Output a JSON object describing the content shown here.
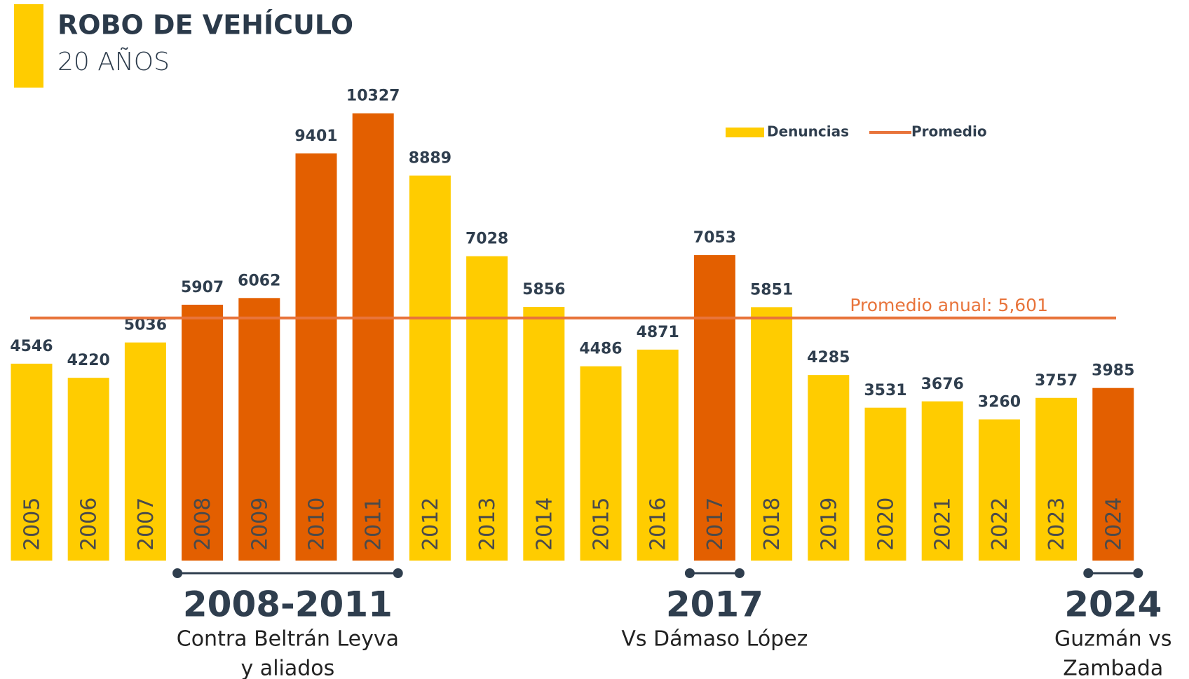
{
  "chart_data": {
    "type": "bar",
    "title": "ROBO DE VEHÍCULO",
    "subtitle": "20 AÑOS",
    "categories": [
      "2005",
      "2006",
      "2007",
      "2008",
      "2009",
      "2010",
      "2011",
      "2012",
      "2013",
      "2014",
      "2015",
      "2016",
      "2017",
      "2018",
      "2019",
      "2020",
      "2021",
      "2022",
      "2023",
      "2024"
    ],
    "series": [
      {
        "name": "Denuncias",
        "color": "#FFCC00",
        "values": [
          4546,
          4220,
          5036,
          5907,
          6062,
          9401,
          10327,
          8889,
          7028,
          5856,
          4486,
          4871,
          7053,
          5851,
          4285,
          3531,
          3676,
          3260,
          3757,
          3985
        ],
        "colors": [
          "#FFCC00",
          "#FFCC00",
          "#FFCC00",
          "#E35F00",
          "#E35F00",
          "#E35F00",
          "#E35F00",
          "#FFCC00",
          "#FFCC00",
          "#FFCC00",
          "#FFCC00",
          "#FFCC00",
          "#E35F00",
          "#FFCC00",
          "#FFCC00",
          "#FFCC00",
          "#FFCC00",
          "#FFCC00",
          "#FFCC00",
          "#E35F00"
        ]
      }
    ],
    "average": {
      "name": "Promedio",
      "color": "#E8743B",
      "value": 5601,
      "label": "Promedio anual: 5,601"
    },
    "ylim": [
      0,
      10500
    ],
    "legend": "top-right",
    "annotations": [
      {
        "from": "2008",
        "to": "2011",
        "label": "2008-2011",
        "lines": [
          "Contra Beltrán Leyva",
          "y aliados"
        ]
      },
      {
        "from": "2017",
        "to": "2017",
        "label": "2017",
        "lines": [
          "Vs Dámaso López"
        ]
      },
      {
        "from": "2024",
        "to": "2024",
        "label": "2024",
        "lines": [
          "Guzmán vs",
          "Zambada"
        ]
      }
    ]
  }
}
